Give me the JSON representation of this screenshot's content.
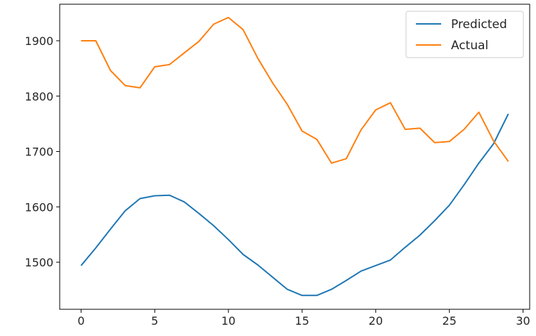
{
  "chart_data": {
    "type": "line",
    "title": "",
    "xlabel": "",
    "ylabel": "",
    "xlim": [
      -1.45,
      30.45
    ],
    "ylim": [
      1415,
      1966
    ],
    "x_ticks": [
      0,
      5,
      10,
      15,
      20,
      25,
      30
    ],
    "x_tick_labels": [
      "0",
      "5",
      "10",
      "15",
      "20",
      "25",
      "30"
    ],
    "y_ticks": [
      1500,
      1600,
      1700,
      1800,
      1900
    ],
    "y_tick_labels": [
      "1500",
      "1600",
      "1700",
      "1800",
      "1900"
    ],
    "grid": false,
    "legend_position": "upper-right",
    "x": [
      0,
      1,
      2,
      3,
      4,
      5,
      6,
      7,
      8,
      9,
      10,
      11,
      12,
      13,
      14,
      15,
      16,
      17,
      18,
      19,
      20,
      21,
      22,
      23,
      24,
      25,
      26,
      27,
      28,
      29
    ],
    "series": [
      {
        "name": "Predicted",
        "color": "#1f77b4",
        "values": [
          1494,
          1526,
          1560,
          1593,
          1615,
          1620,
          1621,
          1609,
          1588,
          1566,
          1541,
          1514,
          1495,
          1473,
          1451,
          1440,
          1440,
          1451,
          1467,
          1484,
          1494,
          1504,
          1527,
          1549,
          1575,
          1603,
          1640,
          1679,
          1714,
          1768
        ]
      },
      {
        "name": "Actual",
        "color": "#ff7f0e",
        "values": [
          1900,
          1900,
          1846,
          1819,
          1815,
          1853,
          1857,
          1878,
          1899,
          1930,
          1942,
          1920,
          1868,
          1824,
          1785,
          1737,
          1722,
          1679,
          1687,
          1739,
          1775,
          1788,
          1740,
          1742,
          1716,
          1718,
          1740,
          1771,
          1719,
          1682
        ]
      }
    ]
  }
}
